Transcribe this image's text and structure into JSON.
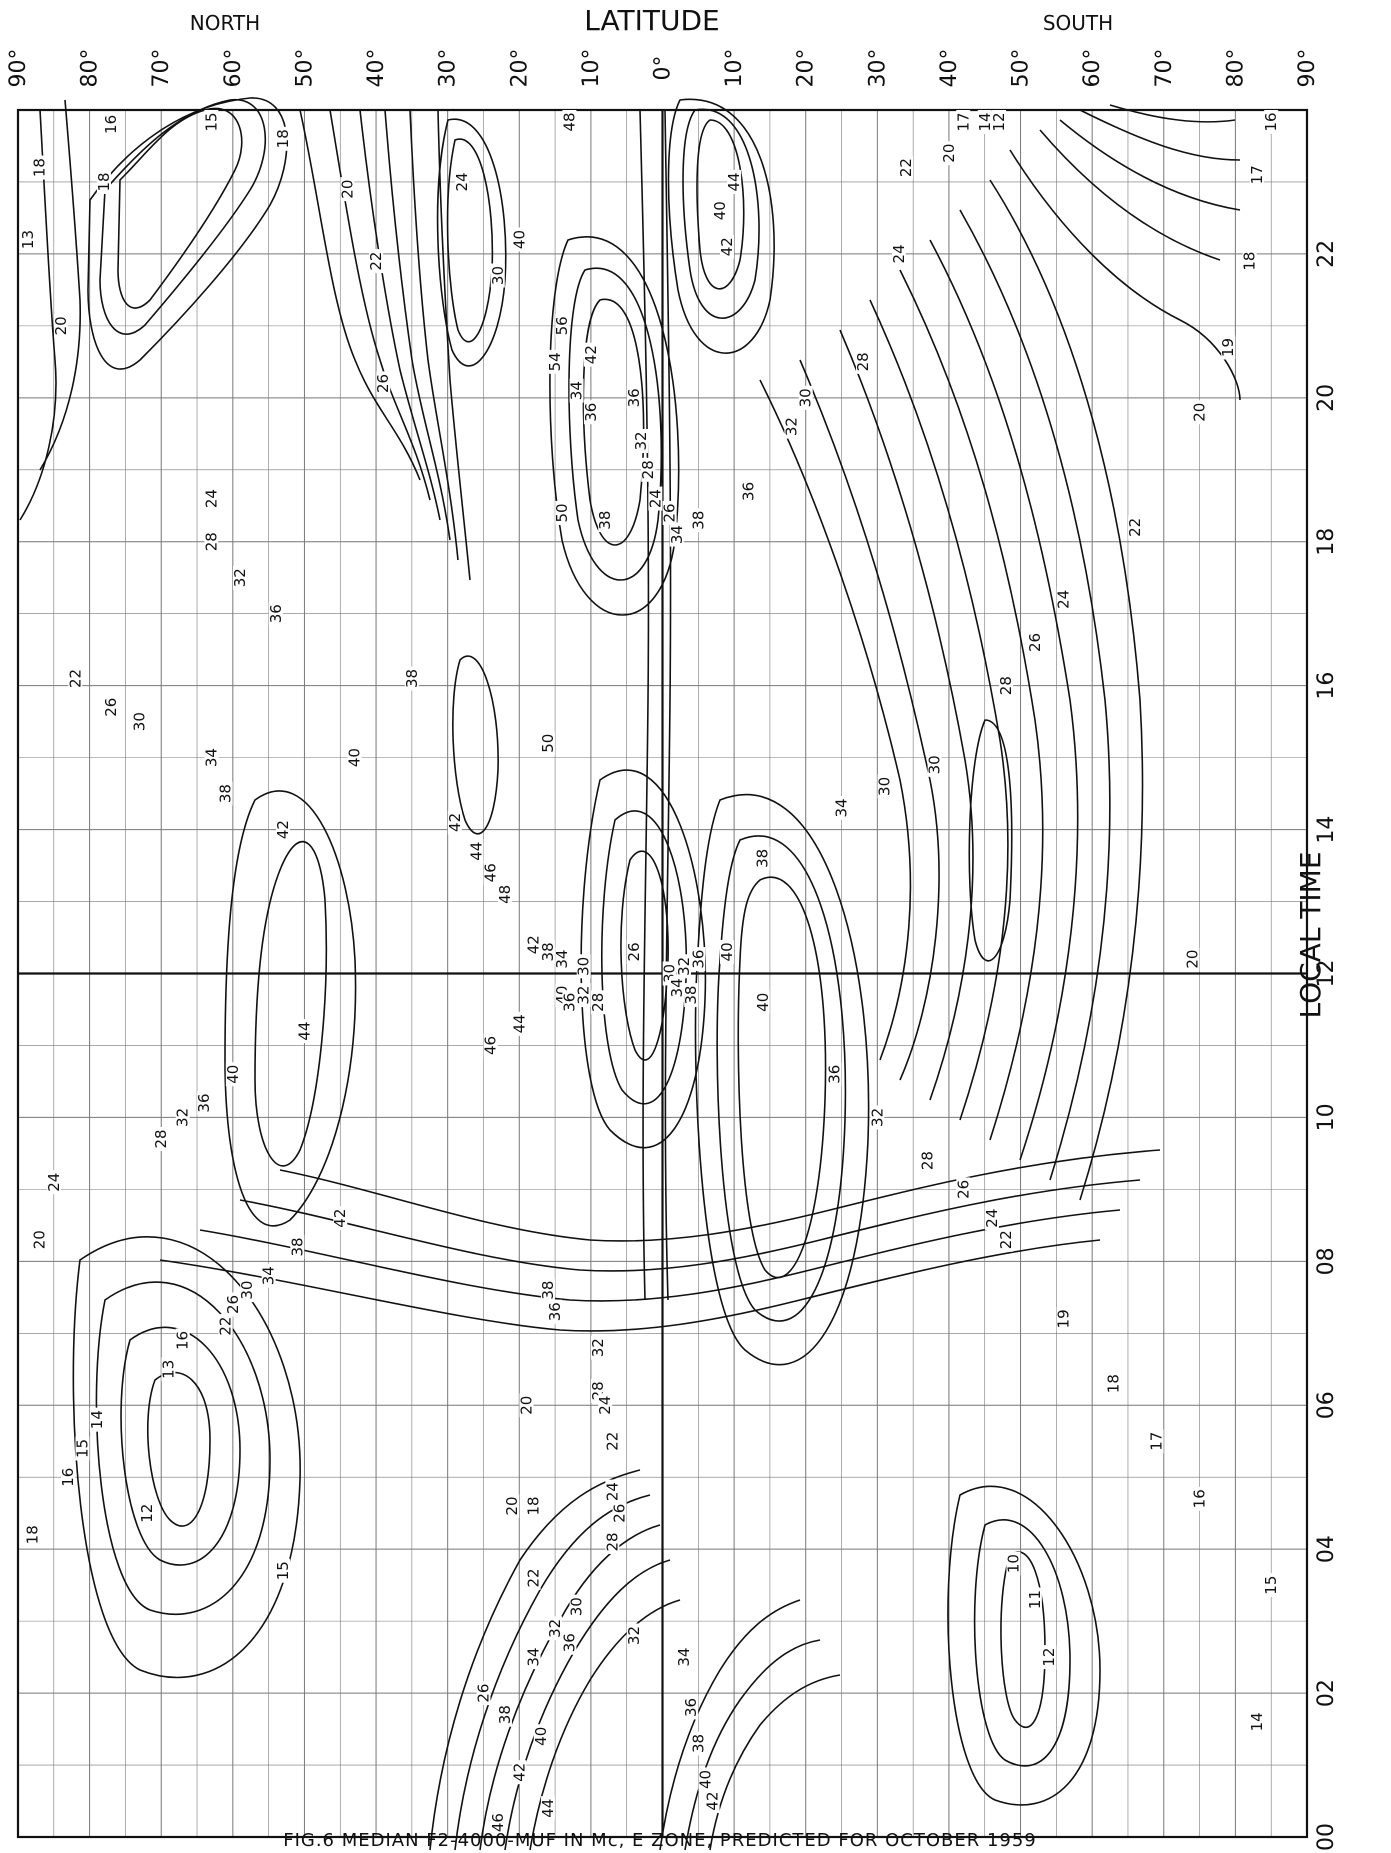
{
  "chart_data": {
    "type": "contour",
    "caption": "FIG.6 MEDIAN F2-4000-MUF IN Mc, E ZONE, PREDICTED FOR OCTOBER 1959",
    "x_header_left": "NORTH",
    "x_header_center": "LATITUDE",
    "x_header_right": "SOUTH",
    "xlabel": "LATITUDE",
    "ylabel": "LOCAL TIME",
    "x_ticks": [
      "90°",
      "80°",
      "70°",
      "60°",
      "50°",
      "40°",
      "30°",
      "20°",
      "10°",
      "0°",
      "10°",
      "20°",
      "30°",
      "40°",
      "50°",
      "60°",
      "70°",
      "80°",
      "90°"
    ],
    "x_values": [
      90,
      80,
      70,
      60,
      50,
      40,
      30,
      20,
      10,
      0,
      -10,
      -20,
      -30,
      -40,
      -50,
      -60,
      -70,
      -80,
      -90
    ],
    "y_ticks": [
      "00",
      "02",
      "04",
      "06",
      "08",
      "10",
      "12",
      "14",
      "16",
      "18",
      "20",
      "22"
    ],
    "y_values": [
      0,
      2,
      4,
      6,
      8,
      10,
      12,
      14,
      16,
      18,
      20,
      22
    ],
    "ylim": [
      0,
      24
    ],
    "xlim": [
      90,
      -90
    ],
    "grid": true,
    "units": "Mc",
    "contour_labels": [
      {
        "lat": 87,
        "time": 23.2,
        "v": "18"
      },
      {
        "lat": 77,
        "time": 23.8,
        "v": "16"
      },
      {
        "lat": 63,
        "time": 23.9,
        "v": "15"
      },
      {
        "lat": 53,
        "time": 23.6,
        "v": "18"
      },
      {
        "lat": 78,
        "time": 23.0,
        "v": "18"
      },
      {
        "lat": 90,
        "time": 22.2,
        "v": "13"
      },
      {
        "lat": 84,
        "time": 21.0,
        "v": "20"
      },
      {
        "lat": 44,
        "time": 22.9,
        "v": "20"
      },
      {
        "lat": 40,
        "time": 21.9,
        "v": "22"
      },
      {
        "lat": 28,
        "time": 23.0,
        "v": "24"
      },
      {
        "lat": 23,
        "time": 21.7,
        "v": "30"
      },
      {
        "lat": 20,
        "time": 22.2,
        "v": "40"
      },
      {
        "lat": 14,
        "time": 21.0,
        "v": "56"
      },
      {
        "lat": 15,
        "time": 20.5,
        "v": "54"
      },
      {
        "lat": 12,
        "time": 20.1,
        "v": "34"
      },
      {
        "lat": 10,
        "time": 19.8,
        "v": "36"
      },
      {
        "lat": 13,
        "time": 24.0,
        "v": "48"
      },
      {
        "lat": 10,
        "time": 20.6,
        "v": "42"
      },
      {
        "lat": 4,
        "time": 20.0,
        "v": "36"
      },
      {
        "lat": 3,
        "time": 19.4,
        "v": "32"
      },
      {
        "lat": 2,
        "time": 19.0,
        "v": "28"
      },
      {
        "lat": 1,
        "time": 18.6,
        "v": "24"
      },
      {
        "lat": -1,
        "time": 18.4,
        "v": "26"
      },
      {
        "lat": 8,
        "time": 18.3,
        "v": "38"
      },
      {
        "lat": 14,
        "time": 18.4,
        "v": "50"
      },
      {
        "lat": 39,
        "time": 20.2,
        "v": "26"
      },
      {
        "lat": 63,
        "time": 18.6,
        "v": "24"
      },
      {
        "lat": 63,
        "time": 18.0,
        "v": "28"
      },
      {
        "lat": 59,
        "time": 17.5,
        "v": "32"
      },
      {
        "lat": 54,
        "time": 17.0,
        "v": "36"
      },
      {
        "lat": 35,
        "time": 16.1,
        "v": "38"
      },
      {
        "lat": 82,
        "time": 16.1,
        "v": "22"
      },
      {
        "lat": 77,
        "time": 15.7,
        "v": "26"
      },
      {
        "lat": 73,
        "time": 15.5,
        "v": "30"
      },
      {
        "lat": 63,
        "time": 15.0,
        "v": "34"
      },
      {
        "lat": 61,
        "time": 14.5,
        "v": "38"
      },
      {
        "lat": 53,
        "time": 14.0,
        "v": "42"
      },
      {
        "lat": 43,
        "time": 15.0,
        "v": "40"
      },
      {
        "lat": 16,
        "time": 15.2,
        "v": "50"
      },
      {
        "lat": 29,
        "time": 14.1,
        "v": "42"
      },
      {
        "lat": 26,
        "time": 13.7,
        "v": "44"
      },
      {
        "lat": 24,
        "time": 13.4,
        "v": "46"
      },
      {
        "lat": 22,
        "time": 13.1,
        "v": "48"
      },
      {
        "lat": 18,
        "time": 12.4,
        "v": "42"
      },
      {
        "lat": 16,
        "time": 12.3,
        "v": "38"
      },
      {
        "lat": 14,
        "time": 12.2,
        "v": "34"
      },
      {
        "lat": 11,
        "time": 12.1,
        "v": "30"
      },
      {
        "lat": 4,
        "time": 12.3,
        "v": "26"
      },
      {
        "lat": -1,
        "time": 12.0,
        "v": "30"
      },
      {
        "lat": -3,
        "time": 12.1,
        "v": "32"
      },
      {
        "lat": -5,
        "time": 12.2,
        "v": "36"
      },
      {
        "lat": -9,
        "time": 12.3,
        "v": "40"
      },
      {
        "lat": -2,
        "time": 11.8,
        "v": "34"
      },
      {
        "lat": -4,
        "time": 11.7,
        "v": "38"
      },
      {
        "lat": 14,
        "time": 11.7,
        "v": "40"
      },
      {
        "lat": 13,
        "time": 11.6,
        "v": "36"
      },
      {
        "lat": 11,
        "time": 11.7,
        "v": "32"
      },
      {
        "lat": 9,
        "time": 11.6,
        "v": "28"
      },
      {
        "lat": 20,
        "time": 11.3,
        "v": "44"
      },
      {
        "lat": 24,
        "time": 11.0,
        "v": "46"
      },
      {
        "lat": 50,
        "time": 11.2,
        "v": "44"
      },
      {
        "lat": 60,
        "time": 10.6,
        "v": "40"
      },
      {
        "lat": 64,
        "time": 10.2,
        "v": "36"
      },
      {
        "lat": 67,
        "time": 10.0,
        "v": "32"
      },
      {
        "lat": 70,
        "time": 9.7,
        "v": "28"
      },
      {
        "lat": 85,
        "time": 9.1,
        "v": "24"
      },
      {
        "lat": 87,
        "time": 8.3,
        "v": "20"
      },
      {
        "lat": 45,
        "time": 8.6,
        "v": "42"
      },
      {
        "lat": 51,
        "time": 8.2,
        "v": "38"
      },
      {
        "lat": 55,
        "time": 7.8,
        "v": "34"
      },
      {
        "lat": 58,
        "time": 7.6,
        "v": "30"
      },
      {
        "lat": 60,
        "time": 7.4,
        "v": "26"
      },
      {
        "lat": 61,
        "time": 7.1,
        "v": "22"
      },
      {
        "lat": 67,
        "time": 6.9,
        "v": "16"
      },
      {
        "lat": 69,
        "time": 6.5,
        "v": "13"
      },
      {
        "lat": 16,
        "time": 7.6,
        "v": "38"
      },
      {
        "lat": 15,
        "time": 7.3,
        "v": "36"
      },
      {
        "lat": 9,
        "time": 6.8,
        "v": "32"
      },
      {
        "lat": 9,
        "time": 6.2,
        "v": "28"
      },
      {
        "lat": 8,
        "time": 6.0,
        "v": "24"
      },
      {
        "lat": 19,
        "time": 6.0,
        "v": "20"
      },
      {
        "lat": 7,
        "time": 5.5,
        "v": "22"
      },
      {
        "lat": 79,
        "time": 5.8,
        "v": "14"
      },
      {
        "lat": 81,
        "time": 5.4,
        "v": "15"
      },
      {
        "lat": 83,
        "time": 5.0,
        "v": "16"
      },
      {
        "lat": 88,
        "time": 4.2,
        "v": "18"
      },
      {
        "lat": 72,
        "time": 4.5,
        "v": "12"
      },
      {
        "lat": 53,
        "time": 3.7,
        "v": "15"
      },
      {
        "lat": 21,
        "time": 4.6,
        "v": "20"
      },
      {
        "lat": 18,
        "time": 4.6,
        "v": "18"
      },
      {
        "lat": 7,
        "time": 4.8,
        "v": "24"
      },
      {
        "lat": 6,
        "time": 4.5,
        "v": "26"
      },
      {
        "lat": 7,
        "time": 4.1,
        "v": "28"
      },
      {
        "lat": 18,
        "time": 3.6,
        "v": "22"
      },
      {
        "lat": 12,
        "time": 3.2,
        "v": "30"
      },
      {
        "lat": 15,
        "time": 2.9,
        "v": "32"
      },
      {
        "lat": 18,
        "time": 2.5,
        "v": "34"
      },
      {
        "lat": 13,
        "time": 2.7,
        "v": "36"
      },
      {
        "lat": 4,
        "time": 2.8,
        "v": "32"
      },
      {
        "lat": -3,
        "time": 2.5,
        "v": "34"
      },
      {
        "lat": -4,
        "time": 1.8,
        "v": "36"
      },
      {
        "lat": -5,
        "time": 1.3,
        "v": "38"
      },
      {
        "lat": -6,
        "time": 0.8,
        "v": "40"
      },
      {
        "lat": -7,
        "time": 0.5,
        "v": "42"
      },
      {
        "lat": 25,
        "time": 2.0,
        "v": "26"
      },
      {
        "lat": 22,
        "time": 1.7,
        "v": "38"
      },
      {
        "lat": 20,
        "time": 0.9,
        "v": "42"
      },
      {
        "lat": 17,
        "time": 1.4,
        "v": "40"
      },
      {
        "lat": 16,
        "time": 0.4,
        "v": "44"
      },
      {
        "lat": 23,
        "time": 0.2,
        "v": "46"
      },
      {
        "lat": -18,
        "time": 19.6,
        "v": "32"
      },
      {
        "lat": -20,
        "time": 20.0,
        "v": "30"
      },
      {
        "lat": -28,
        "time": 20.5,
        "v": "28"
      },
      {
        "lat": -12,
        "time": 18.7,
        "v": "36"
      },
      {
        "lat": -5,
        "time": 18.3,
        "v": "38"
      },
      {
        "lat": -2,
        "time": 18.1,
        "v": "34"
      },
      {
        "lat": -8,
        "time": 22.6,
        "v": "40"
      },
      {
        "lat": -10,
        "time": 23.0,
        "v": "44"
      },
      {
        "lat": -9,
        "time": 22.1,
        "v": "42"
      },
      {
        "lat": -33,
        "time": 22.0,
        "v": "24"
      },
      {
        "lat": -34,
        "time": 23.2,
        "v": "22"
      },
      {
        "lat": -40,
        "time": 23.4,
        "v": "20"
      },
      {
        "lat": -42,
        "time": 24.0,
        "v": "17"
      },
      {
        "lat": -45,
        "time": 24.3,
        "v": "14"
      },
      {
        "lat": -47,
        "time": 24.5,
        "v": "12"
      },
      {
        "lat": -83,
        "time": 23.1,
        "v": "17"
      },
      {
        "lat": -85,
        "time": 24.3,
        "v": "16"
      },
      {
        "lat": -82,
        "time": 21.9,
        "v": "18"
      },
      {
        "lat": -79,
        "time": 20.7,
        "v": "19"
      },
      {
        "lat": -75,
        "time": 19.8,
        "v": "20"
      },
      {
        "lat": -66,
        "time": 18.2,
        "v": "22"
      },
      {
        "lat": -56,
        "time": 17.2,
        "v": "24"
      },
      {
        "lat": -52,
        "time": 16.6,
        "v": "26"
      },
      {
        "lat": -48,
        "time": 16.0,
        "v": "28"
      },
      {
        "lat": -38,
        "time": 14.9,
        "v": "30"
      },
      {
        "lat": -31,
        "time": 14.6,
        "v": "30"
      },
      {
        "lat": -25,
        "time": 14.3,
        "v": "34"
      },
      {
        "lat": -14,
        "time": 13.6,
        "v": "38"
      },
      {
        "lat": -14,
        "time": 11.6,
        "v": "40"
      },
      {
        "lat": -24,
        "time": 10.6,
        "v": "36"
      },
      {
        "lat": -30,
        "time": 10.0,
        "v": "32"
      },
      {
        "lat": -37,
        "time": 9.4,
        "v": "28"
      },
      {
        "lat": -42,
        "time": 9.0,
        "v": "26"
      },
      {
        "lat": -46,
        "time": 8.6,
        "v": "24"
      },
      {
        "lat": -48,
        "time": 8.3,
        "v": "22"
      },
      {
        "lat": -74,
        "time": 12.2,
        "v": "20"
      },
      {
        "lat": -56,
        "time": 7.2,
        "v": "19"
      },
      {
        "lat": -63,
        "time": 6.3,
        "v": "18"
      },
      {
        "lat": -69,
        "time": 5.5,
        "v": "17"
      },
      {
        "lat": -75,
        "time": 4.7,
        "v": "16"
      },
      {
        "lat": -85,
        "time": 3.5,
        "v": "15"
      },
      {
        "lat": -83,
        "time": 1.6,
        "v": "14"
      },
      {
        "lat": -54,
        "time": 2.5,
        "v": "12"
      },
      {
        "lat": -52,
        "time": 3.3,
        "v": "11"
      },
      {
        "lat": -49,
        "time": 3.8,
        "v": "10"
      }
    ]
  }
}
